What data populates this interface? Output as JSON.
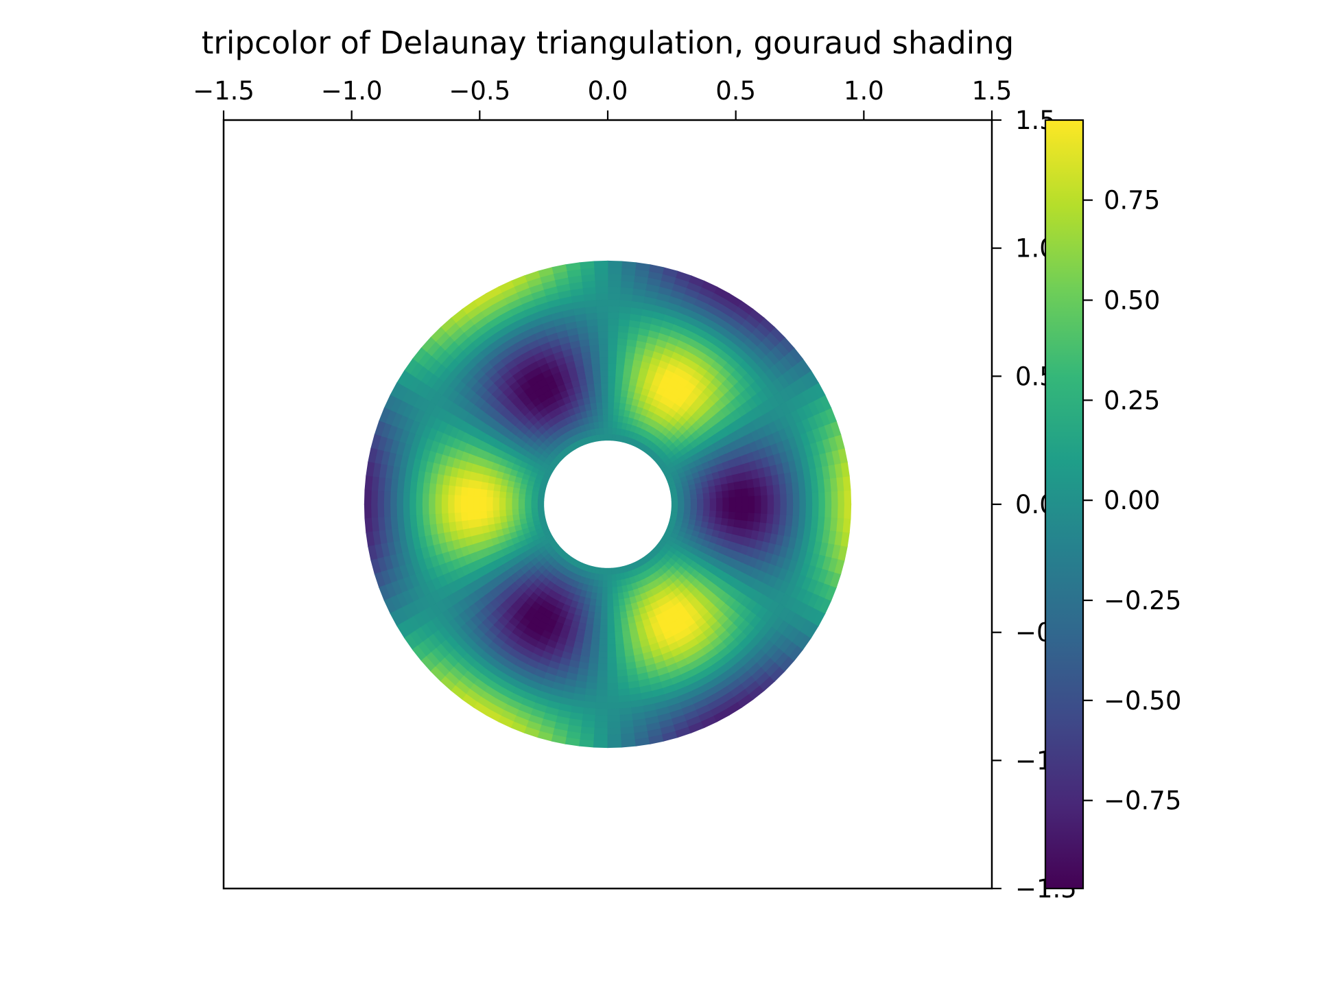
{
  "chart_data": {
    "type": "heatmap",
    "subtype": "tripcolor",
    "title": "tripcolor of Delaunay triangulation, gouraud shading",
    "shading": "gouraud",
    "colormap": "viridis",
    "colormap_stops": [
      "#440154",
      "#482878",
      "#3e4a89",
      "#31688e",
      "#26828e",
      "#1f9e89",
      "#35b779",
      "#6ece58",
      "#b5de2b",
      "#fde725"
    ],
    "x_axis": {
      "position": "top",
      "lim": [
        -1.5,
        1.5
      ],
      "ticks": [
        -1.5,
        -1.0,
        -0.5,
        0.0,
        0.5,
        1.0,
        1.5
      ],
      "tick_labels": [
        "−1.5",
        "−1.0",
        "−0.5",
        "0.0",
        "0.5",
        "1.0",
        "1.5"
      ]
    },
    "y_axis": {
      "position": "right",
      "lim": [
        -1.5,
        1.5
      ],
      "ticks": [
        1.5,
        1.0,
        0.5,
        0.0,
        -0.5,
        -1.0,
        -1.5
      ],
      "tick_labels": [
        "1.5",
        "1.0",
        "0.5",
        "0.0",
        "−0.5",
        "−1.0",
        "−1.5"
      ]
    },
    "aspect": "equal",
    "grid": false,
    "mesh": {
      "inner_radius": 0.25,
      "outer_radius": 0.95,
      "n_radii": 8,
      "n_angles": 36
    },
    "field": "cos(3·θ) · cos(6·r), interpolated across the mesh",
    "value_range": [
      -0.97,
      0.95
    ],
    "colorbar": {
      "orientation": "vertical",
      "ticks": [
        0.75,
        0.5,
        0.25,
        0.0,
        -0.25,
        -0.5,
        -0.75
      ],
      "tick_labels": [
        "0.75",
        "0.50",
        "0.25",
        "0.00",
        "−0.25",
        "−0.50",
        "−0.75"
      ]
    }
  }
}
